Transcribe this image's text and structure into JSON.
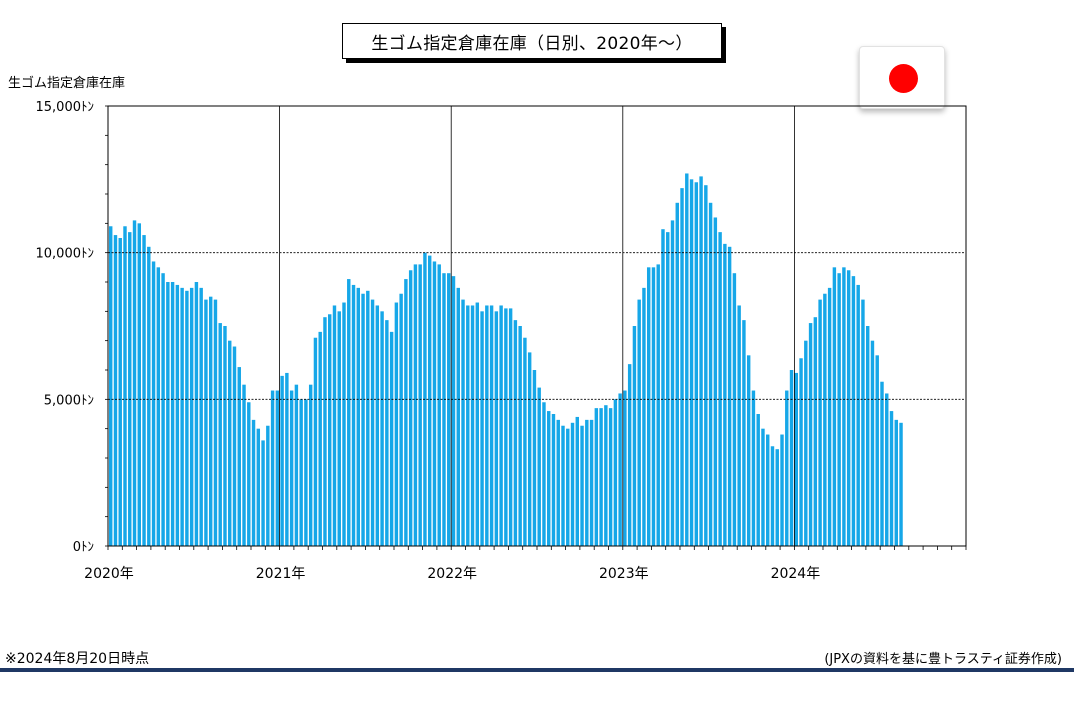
{
  "title": "生ゴム指定倉庫在庫（日別、2020年～）",
  "flag_icon": "japan-flag-icon",
  "footnote": "※2024年8月20日時点",
  "source": "(JPXの資料を基に豊トラスティ証券作成)",
  "colors": {
    "bar": "#16a7e8",
    "flag": "#ff0000",
    "rule": "#1f3864"
  },
  "chart_data": {
    "type": "bar",
    "ylabel": "生ゴム指定倉庫在庫",
    "ylim": [
      0,
      15000
    ],
    "ytick_values": [
      0,
      5000,
      10000,
      15000
    ],
    "ytick_labels": [
      "0ﾄﾝ",
      "5,000ﾄﾝ",
      "10,000ﾄﾝ",
      "15,000ﾄﾝ"
    ],
    "year_labels": [
      "2020年",
      "2021年",
      "2022年",
      "2023年",
      "2024年"
    ],
    "grid": "horizontal dashed at 5,000 and 10,000; vertical solid at year boundaries",
    "legend": "none",
    "x_start": "2020-01",
    "x_end": "2024-12",
    "values": [
      10900,
      10600,
      10500,
      10900,
      10700,
      11100,
      11000,
      10600,
      10200,
      9700,
      9500,
      9300,
      9000,
      9000,
      8900,
      8800,
      8700,
      8800,
      9000,
      8800,
      8400,
      8500,
      8400,
      7600,
      7500,
      7000,
      6800,
      6100,
      5500,
      4900,
      4300,
      4000,
      3600,
      4100,
      5300,
      5300,
      5800,
      5900,
      5300,
      5500,
      5000,
      5000,
      5500,
      7100,
      7300,
      7800,
      7900,
      8200,
      8000,
      8300,
      9100,
      8900,
      8800,
      8600,
      8700,
      8400,
      8200,
      8000,
      7700,
      7300,
      8300,
      8600,
      9100,
      9400,
      9600,
      9600,
      10000,
      9900,
      9700,
      9600,
      9300,
      9300,
      9200,
      8800,
      8400,
      8200,
      8200,
      8300,
      8000,
      8200,
      8200,
      8000,
      8200,
      8100,
      8100,
      7700,
      7500,
      7100,
      6600,
      6000,
      5400,
      4900,
      4600,
      4500,
      4300,
      4100,
      4000,
      4200,
      4400,
      4100,
      4300,
      4300,
      4700,
      4700,
      4800,
      4700,
      5000,
      5200,
      5300,
      6200,
      7500,
      8400,
      8800,
      9500,
      9500,
      9600,
      10800,
      10700,
      11100,
      11700,
      12200,
      12700,
      12500,
      12400,
      12600,
      12300,
      11700,
      11200,
      10700,
      10300,
      10200,
      9300,
      8200,
      7700,
      6500,
      5300,
      4500,
      4000,
      3800,
      3400,
      3300,
      3800,
      5300,
      6000,
      5900,
      6400,
      7000,
      7600,
      7800,
      8400,
      8600,
      8800,
      9500,
      9300,
      9500,
      9400,
      9200,
      8900,
      8400,
      7500,
      7000,
      6500,
      5600,
      5200,
      4600,
      4300,
      4200
    ]
  }
}
